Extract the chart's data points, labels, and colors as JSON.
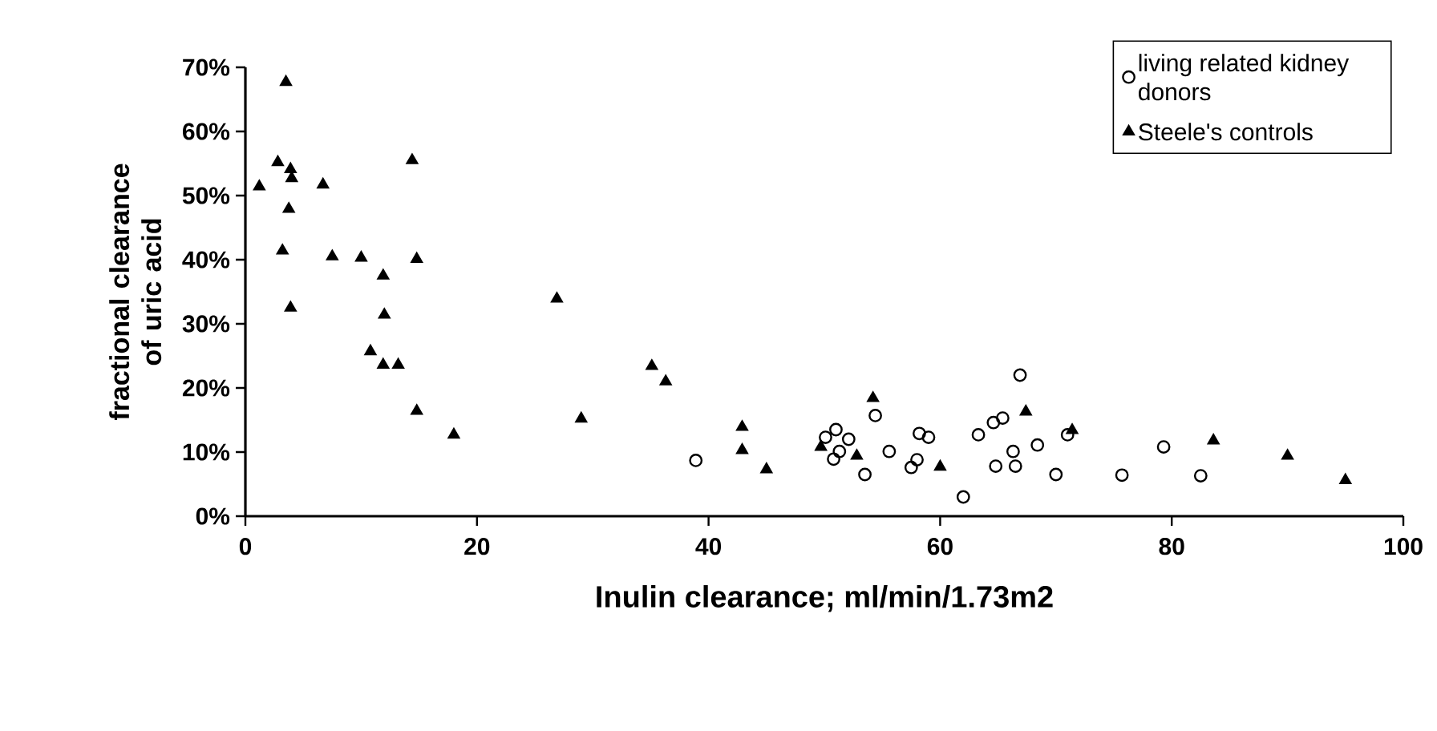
{
  "chart_data": {
    "type": "scatter",
    "xlabel": "Inulin clearance; ml/min/1.73m2",
    "ylabel": "fractional clearance of uric acid",
    "xlim": [
      0,
      100
    ],
    "xticks": [
      0,
      20,
      40,
      60,
      80,
      100
    ],
    "ylim": [
      0,
      70
    ],
    "yticks": [
      {
        "value": 0,
        "label": "0%"
      },
      {
        "value": 10,
        "label": "10%"
      },
      {
        "value": 20,
        "label": "20%"
      },
      {
        "value": 30,
        "label": "30%"
      },
      {
        "value": 40,
        "label": "40%"
      },
      {
        "value": 50,
        "label": "50%"
      },
      {
        "value": 60,
        "label": "60%"
      },
      {
        "value": 70,
        "label": "70%"
      }
    ],
    "legend": "top right",
    "grid": false,
    "series": [
      {
        "name": "living related kidney donors",
        "color": "#000000",
        "marker": "circle",
        "x": [
          38.9,
          50.1,
          51.0,
          52.1,
          51.3,
          50.8,
          53.5,
          54.4,
          55.6,
          57.5,
          58.2,
          59.0,
          58.0,
          62.0,
          63.3,
          64.6,
          65.4,
          64.8,
          66.3,
          66.9,
          66.5,
          68.4,
          70.0,
          71.0,
          75.7,
          79.3,
          82.5
        ],
        "values": [
          8.7,
          12.3,
          13.5,
          12.0,
          10.1,
          8.9,
          6.5,
          15.7,
          10.1,
          7.6,
          12.9,
          12.3,
          8.8,
          3.0,
          12.7,
          14.6,
          15.3,
          7.8,
          10.1,
          22.0,
          7.8,
          11.1,
          6.5,
          12.7,
          6.4,
          10.8,
          6.3
        ]
      },
      {
        "name": "Steele's controls",
        "color": "#000000",
        "marker": "triangle",
        "x": [
          3.5,
          2.8,
          3.9,
          4.0,
          1.2,
          6.7,
          14.4,
          3.75,
          3.2,
          7.5,
          10.0,
          14.8,
          11.9,
          3.9,
          12.0,
          10.8,
          11.9,
          13.2,
          14.8,
          18.0,
          26.9,
          35.1,
          36.3,
          29.0,
          42.9,
          42.9,
          45.0,
          49.7,
          52.8,
          54.2,
          60.0,
          67.4,
          71.4,
          83.6,
          90.0,
          95.0
        ],
        "values": [
          67.7,
          55.2,
          54.1,
          52.7,
          51.4,
          51.7,
          55.5,
          47.9,
          41.4,
          40.5,
          40.3,
          40.1,
          37.5,
          32.5,
          31.4,
          25.7,
          23.6,
          23.6,
          16.4,
          12.7,
          33.9,
          23.4,
          21.0,
          15.2,
          13.9,
          10.3,
          7.3,
          10.8,
          9.4,
          18.4,
          7.7,
          16.3,
          13.4,
          11.8,
          9.4,
          5.6
        ]
      }
    ]
  }
}
